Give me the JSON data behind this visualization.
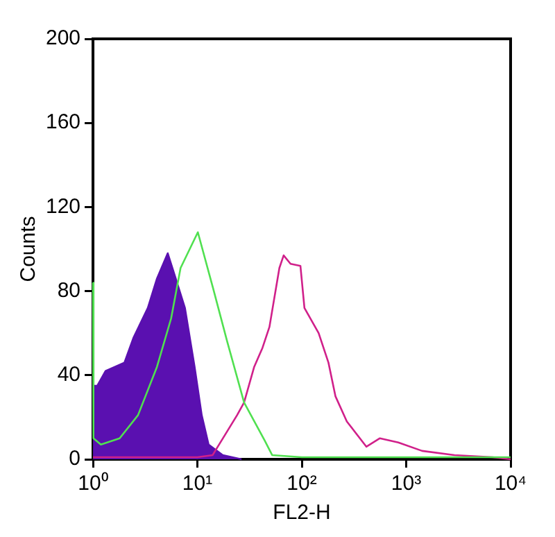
{
  "chart_data": {
    "type": "line",
    "xlabel": "FL2-H",
    "ylabel": "Counts",
    "log": "x",
    "grid": false,
    "legend": false,
    "marker": "none",
    "xlim": [
      1,
      10000
    ],
    "xticks": [
      {
        "value": 1,
        "label": "10⁰"
      },
      {
        "value": 10,
        "label": "10¹"
      },
      {
        "value": 100,
        "label": "10²"
      },
      {
        "value": 1000,
        "label": "10³"
      },
      {
        "value": 10000,
        "label": "10⁴"
      }
    ],
    "ylim": [
      0,
      200
    ],
    "yticks": [
      0,
      40,
      80,
      120,
      160,
      200
    ],
    "series": [
      {
        "type": "area",
        "color": "#5a10b0",
        "x": [
          1,
          1.1,
          1.32,
          2.0,
          2.45,
          3.35,
          4.1,
          5.2,
          6.2,
          7.6,
          9.4,
          11,
          12.8,
          17.5,
          26.5
        ],
        "values": [
          35,
          35,
          42,
          46,
          58,
          72,
          86,
          98,
          86,
          72,
          44,
          21,
          7,
          2,
          0
        ]
      },
      {
        "type": "line",
        "color": "#50e050",
        "x": [
          1,
          1.01,
          1.19,
          1.8,
          2.7,
          4.1,
          5.6,
          6.9,
          10.1,
          14.2,
          19.3,
          28,
          44,
          52,
          100,
          1000,
          10000
        ],
        "values": [
          84,
          10,
          7,
          10,
          21,
          44,
          67,
          91,
          108,
          81,
          56,
          27,
          9,
          2,
          1,
          1,
          1
        ]
      },
      {
        "type": "line",
        "color": "#d0208a",
        "x": [
          1,
          10,
          14,
          24,
          28,
          35,
          42,
          49,
          61,
          67,
          78,
          97,
          106,
          145,
          180,
          210,
          270,
          415,
          560,
          840,
          1420,
          2900,
          6700,
          10000
        ],
        "values": [
          1,
          1,
          2,
          21,
          27,
          44,
          53,
          63,
          91,
          97,
          93,
          92,
          72,
          60,
          46,
          30,
          18,
          6,
          10,
          8,
          4,
          2,
          1,
          0
        ]
      }
    ]
  }
}
